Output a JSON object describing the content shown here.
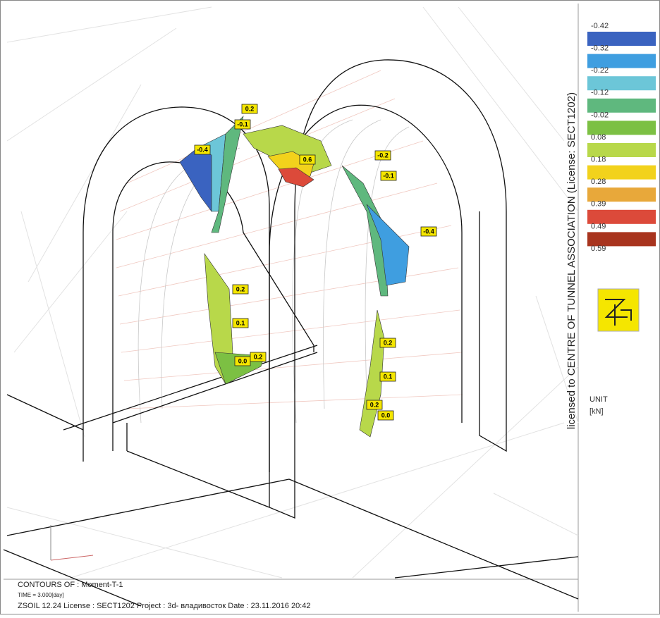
{
  "license_text": "licensed to CENTRE OF TUNNEL ASSOCIATION (License: SECT1202)",
  "legend": {
    "labels": [
      "-0.42",
      "-0.32",
      "-0.22",
      "-0.12",
      "-0.02",
      "0.08",
      "0.18",
      "0.28",
      "0.39",
      "0.49",
      "0.59"
    ],
    "colors": [
      "#3a63c0",
      "#3f9ee0",
      "#6cc6d8",
      "#5fb87e",
      "#7cc043",
      "#b8d84a",
      "#f2d21c",
      "#e8a83a",
      "#dc4a3a",
      "#a8341e"
    ]
  },
  "unit": {
    "label": "UNIT",
    "value": "[kN]"
  },
  "footer": {
    "contours": "CONTOURS OF : Moment-T-1",
    "time": "TIME = 3.000[day]",
    "info": "ZSOIL 12.24   License :  SECT1202   Project : 3d- владивосток     Date : 23.11.2016  20:42"
  },
  "annotations": [
    "0.2",
    "-0.1",
    "-0.4",
    "0.6",
    "-0.2",
    "-0.1",
    "-0.4",
    "0.2",
    "0.1",
    "0.0",
    "0.2",
    "0.2",
    "0.1",
    "0.2",
    "0.0"
  ]
}
